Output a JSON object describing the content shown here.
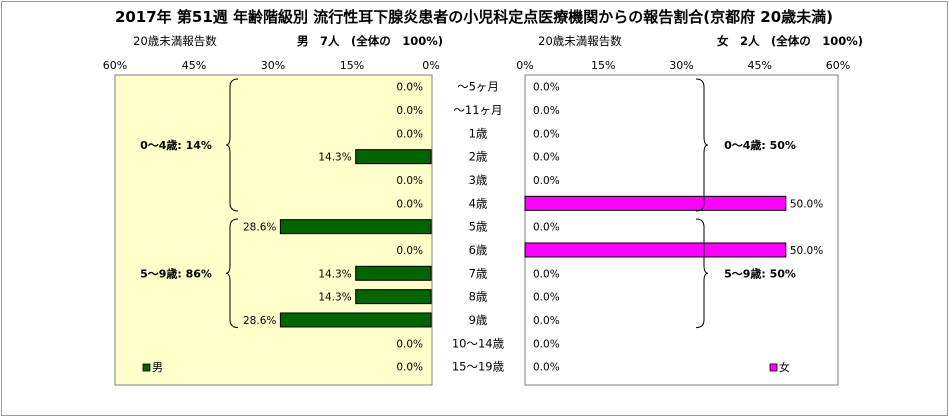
{
  "title": "2017年 第51週 年齢階級別 流行性耳下腺炎患者の小児科定点医療機関からの報告割合(京都府 20歳未満)",
  "left_header": {
    "sub": "20歳未満報告数",
    "summary": "男　7人　(全体の　100%)"
  },
  "right_header": {
    "sub": "20歳未満報告数",
    "summary": "女　2人　(全体の　100%)"
  },
  "colors": {
    "male": "#006400",
    "female": "#ff00ff",
    "plot_bg_left": "#ffffcc"
  },
  "chart_data": [
    {
      "type": "bar",
      "orientation": "horizontal",
      "axis_direction": "reversed",
      "xlim": [
        0,
        60
      ],
      "ticks": [
        "60%",
        "45%",
        "30%",
        "15%",
        "0%"
      ],
      "categories": [
        "～5ヶ月",
        "～11ヶ月",
        "1歳",
        "2歳",
        "3歳",
        "4歳",
        "5歳",
        "6歳",
        "7歳",
        "8歳",
        "9歳",
        "10～14歳",
        "15～19歳"
      ],
      "series": [
        {
          "name": "男",
          "values": [
            0.0,
            0.0,
            0.0,
            14.3,
            0.0,
            0.0,
            28.6,
            0.0,
            14.3,
            14.3,
            28.6,
            0.0,
            0.0
          ]
        }
      ],
      "value_labels": [
        "0.0%",
        "0.0%",
        "0.0%",
        "14.3%",
        "0.0%",
        "0.0%",
        "28.6%",
        "0.0%",
        "14.3%",
        "14.3%",
        "28.6%",
        "0.0%",
        "0.0%"
      ],
      "groups": [
        {
          "label": "0～4歳: 14%",
          "from": 0,
          "to": 5
        },
        {
          "label": "5～9歳: 86%",
          "from": 6,
          "to": 10
        }
      ],
      "legend": {
        "label": "男",
        "position": "bottom-left"
      }
    },
    {
      "type": "bar",
      "orientation": "horizontal",
      "xlim": [
        0,
        60
      ],
      "ticks": [
        "0%",
        "15%",
        "30%",
        "45%",
        "60%"
      ],
      "categories": [
        "～5ヶ月",
        "～11ヶ月",
        "1歳",
        "2歳",
        "3歳",
        "4歳",
        "5歳",
        "6歳",
        "7歳",
        "8歳",
        "9歳",
        "10～14歳",
        "15～19歳"
      ],
      "series": [
        {
          "name": "女",
          "values": [
            0.0,
            0.0,
            0.0,
            0.0,
            0.0,
            50.0,
            0.0,
            50.0,
            0.0,
            0.0,
            0.0,
            0.0,
            0.0
          ]
        }
      ],
      "value_labels": [
        "0.0%",
        "0.0%",
        "0.0%",
        "0.0%",
        "0.0%",
        "50.0%",
        "0.0%",
        "50.0%",
        "0.0%",
        "0.0%",
        "0.0%",
        "0.0%",
        "0.0%"
      ],
      "groups": [
        {
          "label": "0～4歳: 50%",
          "from": 0,
          "to": 5
        },
        {
          "label": "5～9歳: 50%",
          "from": 6,
          "to": 10
        }
      ],
      "legend": {
        "label": "女",
        "position": "bottom-right"
      }
    }
  ]
}
